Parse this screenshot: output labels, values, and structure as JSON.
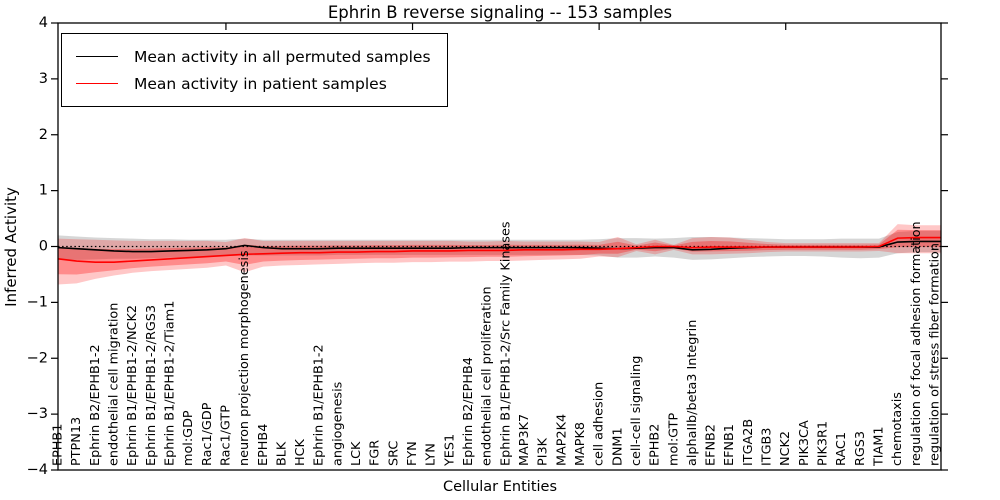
{
  "title": "Ephrin B reverse signaling -- 153 samples",
  "colors": {
    "patient_line": "#ff0000",
    "permuted_line": "#000000",
    "patient_band": "rgba(255,0,0,0.22)",
    "patient_band_inner": "rgba(255,0,0,0.30)",
    "permuted_band": "rgba(120,120,120,0.30)",
    "axis": "#000000"
  },
  "chart_data": {
    "type": "line",
    "title": "Ephrin B reverse signaling -- 153 samples",
    "xlabel": "Cellular Entities",
    "ylabel": "Inferred Activity",
    "ylim": [
      -4,
      4
    ],
    "yticks": [
      4,
      3,
      2,
      1,
      0,
      -1,
      -2,
      -3,
      -4
    ],
    "ytick_labels": [
      "4",
      "3",
      "2",
      "1",
      "0",
      "−1",
      "−2",
      "−3",
      "−4"
    ],
    "grid": false,
    "zero_line_style": "dotted",
    "legend_position": "upper left",
    "top_tick_indices": [
      9,
      19,
      29,
      39
    ],
    "categories": [
      "EPHB1",
      "PTPN13",
      "Ephrin B2/EPHB1-2",
      "endothelial cell migration",
      "Ephrin B1/EPHB1-2/NCK2",
      "Ephrin B1/EPHB1-2/RGS3",
      "Ephrin B1/EPHB1-2/Tiam1",
      "mol:GDP",
      "Rac1/GDP",
      "Rac1/GTP",
      "neuron projection morphogenesis",
      "EPHB4",
      "BLK",
      "HCK",
      "Ephrin B1/EPHB1-2",
      "angiogenesis",
      "LCK",
      "FGR",
      "SRC",
      "FYN",
      "LYN",
      "YES1",
      "Ephrin B2/EPHB4",
      "endothelial cell proliferation",
      "Ephrin B1/EPHB1-2/Src Family Kinases",
      "MAP3K7",
      "PI3K",
      "MAP2K4",
      "MAPK8",
      "cell adhesion",
      "DNM1",
      "cell-cell signaling",
      "EPHB2",
      "mol:GTP",
      "alphaIIb/beta3 Integrin",
      "EFNB2",
      "EFNB1",
      "ITGA2B",
      "ITGB3",
      "NCK2",
      "PIK3CA",
      "PIK3R1",
      "RAC1",
      "RGS3",
      "TIAM1",
      "chemotaxis",
      "regulation of focal adhesion formation",
      "regulation of stress fiber formation"
    ],
    "series": [
      {
        "name": "Mean activity in all permuted samples",
        "color": "#000000",
        "values": [
          -0.02,
          -0.04,
          -0.06,
          -0.08,
          -0.09,
          -0.09,
          -0.08,
          -0.07,
          -0.06,
          -0.04,
          0.02,
          -0.02,
          -0.04,
          -0.04,
          -0.04,
          -0.03,
          -0.03,
          -0.03,
          -0.03,
          -0.03,
          -0.03,
          -0.03,
          -0.02,
          -0.02,
          -0.02,
          -0.02,
          -0.02,
          -0.02,
          -0.02,
          -0.03,
          -0.04,
          -0.03,
          -0.02,
          -0.02,
          -0.06,
          -0.05,
          -0.03,
          -0.02,
          -0.01,
          -0.01,
          -0.01,
          -0.01,
          -0.01,
          -0.01,
          -0.01,
          0.08,
          0.09,
          0.09
        ]
      },
      {
        "name": "Mean activity in patient samples",
        "color": "#ff0000",
        "values": [
          -0.22,
          -0.26,
          -0.28,
          -0.28,
          -0.26,
          -0.24,
          -0.22,
          -0.2,
          -0.18,
          -0.16,
          -0.14,
          -0.13,
          -0.12,
          -0.11,
          -0.11,
          -0.1,
          -0.1,
          -0.09,
          -0.09,
          -0.08,
          -0.08,
          -0.08,
          -0.07,
          -0.07,
          -0.07,
          -0.06,
          -0.06,
          -0.06,
          -0.05,
          -0.05,
          -0.04,
          -0.02,
          0.0,
          0.0,
          -0.02,
          -0.01,
          -0.01,
          -0.01,
          -0.01,
          -0.01,
          -0.01,
          -0.01,
          -0.01,
          -0.01,
          0.0,
          0.15,
          0.16,
          0.16
        ]
      }
    ],
    "bands": [
      {
        "name": "permuted-range",
        "color": "rgba(120,120,120,0.30)",
        "hi": [
          0.2,
          0.18,
          0.16,
          0.15,
          0.14,
          0.13,
          0.13,
          0.12,
          0.12,
          0.12,
          0.14,
          0.12,
          0.12,
          0.12,
          0.12,
          0.12,
          0.12,
          0.12,
          0.12,
          0.12,
          0.12,
          0.12,
          0.12,
          0.12,
          0.12,
          0.12,
          0.12,
          0.12,
          0.12,
          0.13,
          0.15,
          0.15,
          0.14,
          0.15,
          0.17,
          0.17,
          0.16,
          0.15,
          0.14,
          0.13,
          0.13,
          0.13,
          0.14,
          0.14,
          0.14,
          0.26,
          0.28,
          0.28
        ],
        "lo": [
          -0.24,
          -0.24,
          -0.23,
          -0.22,
          -0.22,
          -0.21,
          -0.2,
          -0.19,
          -0.18,
          -0.17,
          -0.16,
          -0.16,
          -0.16,
          -0.16,
          -0.16,
          -0.15,
          -0.15,
          -0.15,
          -0.15,
          -0.15,
          -0.15,
          -0.15,
          -0.15,
          -0.15,
          -0.15,
          -0.15,
          -0.15,
          -0.15,
          -0.15,
          -0.16,
          -0.2,
          -0.2,
          -0.18,
          -0.2,
          -0.24,
          -0.23,
          -0.21,
          -0.19,
          -0.18,
          -0.17,
          -0.17,
          -0.18,
          -0.2,
          -0.21,
          -0.2,
          -0.12,
          -0.1,
          -0.1
        ]
      },
      {
        "name": "patient-range",
        "color": "rgba(255,0,0,0.22)",
        "inner_color": "rgba(255,0,0,0.30)",
        "hi": [
          0.14,
          0.13,
          0.12,
          0.11,
          0.1,
          0.1,
          0.1,
          0.1,
          0.1,
          0.08,
          0.15,
          0.1,
          0.1,
          0.1,
          0.1,
          0.1,
          0.1,
          0.1,
          0.1,
          0.1,
          0.1,
          0.1,
          0.09,
          0.09,
          0.1,
          0.09,
          0.09,
          0.09,
          0.09,
          0.08,
          0.17,
          0.04,
          0.12,
          0.03,
          0.15,
          0.17,
          0.16,
          0.12,
          0.08,
          0.06,
          0.06,
          0.06,
          0.06,
          0.06,
          0.06,
          0.4,
          0.38,
          0.38
        ],
        "lo": [
          -0.68,
          -0.66,
          -0.58,
          -0.52,
          -0.47,
          -0.44,
          -0.42,
          -0.4,
          -0.38,
          -0.34,
          -0.46,
          -0.36,
          -0.34,
          -0.33,
          -0.32,
          -0.31,
          -0.3,
          -0.29,
          -0.29,
          -0.28,
          -0.28,
          -0.27,
          -0.27,
          -0.26,
          -0.26,
          -0.25,
          -0.24,
          -0.23,
          -0.22,
          -0.18,
          -0.19,
          -0.08,
          -0.14,
          -0.06,
          -0.14,
          -0.14,
          -0.13,
          -0.12,
          -0.1,
          -0.09,
          -0.09,
          -0.09,
          -0.09,
          -0.09,
          -0.08,
          -0.12,
          -0.12,
          -0.12
        ]
      }
    ]
  }
}
